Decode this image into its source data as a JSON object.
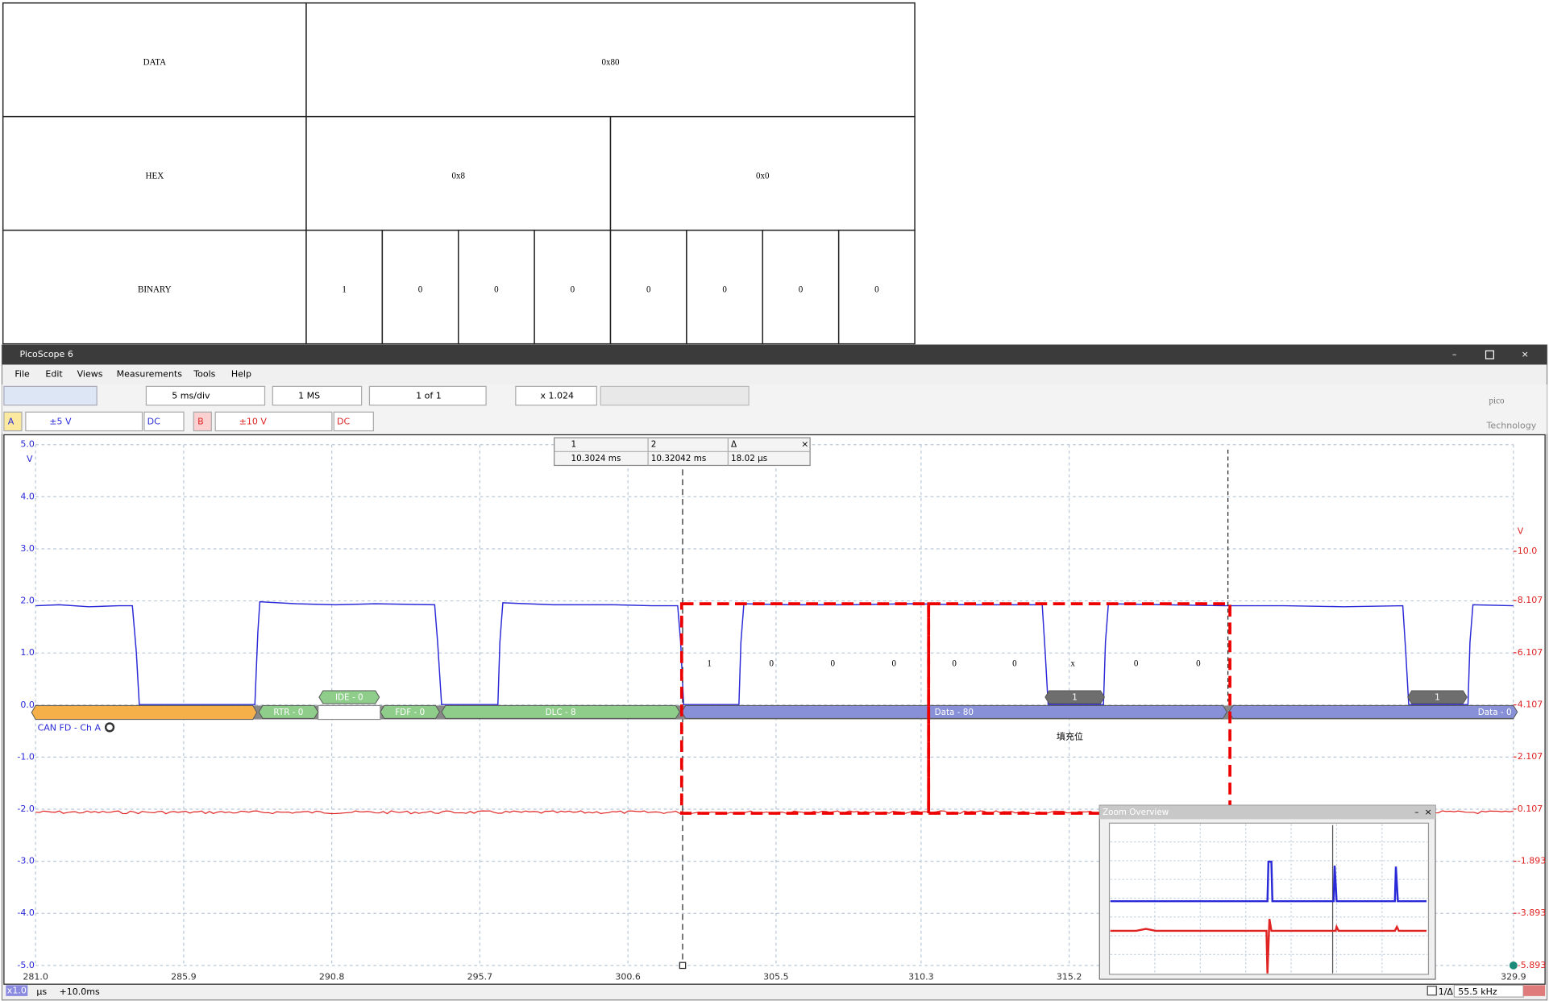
{
  "table": {
    "rows": [
      [
        "DATA",
        "0x80"
      ],
      [
        "HEX",
        "0x8",
        "0x0"
      ],
      [
        "BINARY",
        "1",
        "0",
        "0",
        "0",
        "0",
        "0",
        "0",
        "0"
      ]
    ]
  },
  "window": {
    "title": "PicoScope 6",
    "menu": [
      "File",
      "Edit",
      "Views",
      "Measurements",
      "Tools",
      "Help"
    ],
    "toolbar": {
      "timebase": "5 ms/div",
      "samples": "1 MS",
      "capture": "1 of 1",
      "zoom": "x 1.024"
    },
    "channels": [
      {
        "name": "A",
        "range": "±5 V",
        "coupling": "DC",
        "color": "#2a2ad8"
      },
      {
        "name": "B",
        "range": "±10 V",
        "coupling": "DC",
        "color": "#e02424"
      }
    ],
    "logo": {
      "name": "pico",
      "tagline": "Technology"
    }
  },
  "scope": {
    "xlim": [
      281.0,
      329.9
    ],
    "xticks": [
      {
        "value": 281.0,
        "label": "281.0"
      },
      285.9,
      290.8,
      295.7,
      300.6,
      305.5,
      310.3,
      315.2,
      329.9
    ],
    "x_unit": "μs",
    "x_offset": "+10.0ms",
    "ylim": [
      -5,
      5
    ],
    "yticks": [
      {
        "value": 5,
        "label": "5.0"
      },
      {
        "value": 4,
        "label": "4.0"
      },
      {
        "value": 3,
        "label": "3.0"
      },
      {
        "value": 2,
        "label": "2.0"
      },
      {
        "value": 1,
        "label": "1.0"
      },
      {
        "value": 0,
        "label": "0.0"
      },
      {
        "value": -1,
        "label": "-1.0"
      },
      {
        "value": -2,
        "label": "-2.0"
      },
      {
        "value": -3,
        "label": "-3.0"
      },
      {
        "value": -4,
        "label": "-4.0"
      },
      {
        "value": -5,
        "label": "-5.0"
      }
    ],
    "y_unit": "V",
    "y2lim": [
      -5.893,
      14.093
    ],
    "y2ticks": [
      {
        "value": 10,
        "label": "10.0"
      },
      8.107,
      6.107,
      4.107,
      2.107,
      0.107,
      -1.893,
      -3.893,
      -5.893
    ],
    "y2_unit": "V",
    "grid": true,
    "cursors": {
      "headers": [
        "1",
        "2",
        "Δ"
      ],
      "values": [
        "10.3024 ms",
        "10.32042 ms",
        "18.02 µs"
      ]
    },
    "decoder": {
      "name": "CAN FD - Ch A",
      "fields": [
        "RTR - 0",
        "IDE - 0",
        "FDF - 0",
        "DLC - 8",
        "Data - 80",
        "1",
        "1",
        "Data - 0"
      ]
    },
    "zoom_overview": "Zoom Overview",
    "status": {
      "zoom": "x1.0",
      "frequency_label": "1/Δ",
      "frequency": "55.5 kHz"
    }
  },
  "annotations": {
    "bits": [
      "1",
      "0",
      "0",
      "0",
      "0",
      "0",
      "x",
      "0",
      "0"
    ],
    "note": "填充位"
  }
}
